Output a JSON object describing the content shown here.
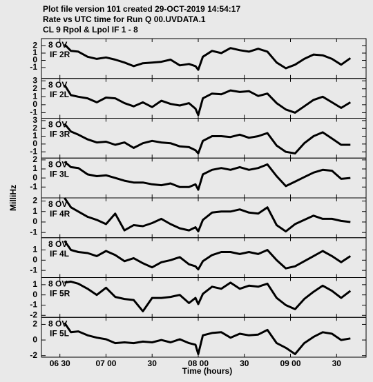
{
  "header": {
    "lines": [
      "Plot file version 101  created 29-OCT-2019 14:54:17",
      "Rate vs UTC time for Run Q 00.UVDATA.1",
      "CL 9  Rpol & Lpol  IF 1 - 8"
    ],
    "ylabel": "MilliHz",
    "xlabel": "Time (hours)"
  },
  "chart_data": [
    {
      "type": "line",
      "labels": [
        "8 OV",
        "IF 2R"
      ],
      "color": "#000000",
      "x": [
        6.55,
        6.62,
        6.7,
        6.8,
        6.9,
        7.0,
        7.1,
        7.2,
        7.3,
        7.4,
        7.5,
        7.6,
        7.7,
        7.8,
        7.9,
        7.97,
        8.0,
        8.05,
        8.15,
        8.25,
        8.35,
        8.45,
        8.55,
        8.65,
        8.75,
        8.85,
        8.95,
        9.05,
        9.15,
        9.25,
        9.35,
        9.45,
        9.55,
        9.65
      ],
      "values": [
        2.2,
        1.3,
        1.2,
        0.5,
        0.2,
        0.4,
        0.1,
        -0.3,
        -0.8,
        -0.4,
        -0.3,
        -0.2,
        0.1,
        -0.7,
        -0.5,
        -0.8,
        -1.3,
        0.5,
        1.3,
        1.0,
        1.7,
        1.4,
        1.2,
        1.6,
        1.2,
        -0.3,
        -1.1,
        -0.6,
        0.2,
        0.8,
        0.7,
        0.2,
        -0.6,
        0.3
      ],
      "xlim": [
        6.3,
        9.82
      ],
      "xticks": [
        {
          "value": 6.5,
          "label": "06 30"
        },
        {
          "value": 7.0,
          "label": "07 00"
        },
        {
          "value": 7.5,
          "label": "30"
        },
        {
          "value": 8.0,
          "label": "08 00"
        },
        {
          "value": 8.5,
          "label": "30"
        },
        {
          "value": 9.0,
          "label": "09 00"
        },
        {
          "value": 9.5,
          "label": "30"
        }
      ],
      "ylim": [
        -2.5,
        3.0
      ],
      "yticks": [
        -1,
        0,
        1,
        2
      ]
    },
    {
      "type": "line",
      "labels": [
        "8 OV",
        "IF 2L"
      ],
      "color": "#000000",
      "x": [
        6.55,
        6.62,
        6.7,
        6.8,
        6.9,
        7.0,
        7.1,
        7.2,
        7.3,
        7.4,
        7.5,
        7.6,
        7.7,
        7.8,
        7.9,
        7.97,
        8.0,
        8.05,
        8.15,
        8.25,
        8.35,
        8.45,
        8.55,
        8.65,
        8.75,
        8.85,
        8.95,
        9.05,
        9.15,
        9.25,
        9.35,
        9.45,
        9.55,
        9.65
      ],
      "values": [
        2.5,
        1.2,
        1.0,
        0.8,
        0.3,
        0.9,
        0.8,
        0.2,
        -0.2,
        0.3,
        -0.3,
        0.5,
        0.1,
        -0.1,
        0.2,
        -0.5,
        -1.3,
        0.8,
        1.4,
        1.3,
        1.8,
        1.6,
        1.7,
        1.1,
        1.4,
        0.2,
        -0.6,
        -1.0,
        -0.2,
        0.6,
        1.0,
        0.3,
        -0.4,
        0.3
      ],
      "xlim": [
        6.3,
        9.82
      ],
      "xticks": [
        {
          "value": 6.5,
          "label": "06 30"
        },
        {
          "value": 7.0,
          "label": "07 00"
        },
        {
          "value": 7.5,
          "label": "30"
        },
        {
          "value": 8.0,
          "label": "08 00"
        },
        {
          "value": 8.5,
          "label": "30"
        },
        {
          "value": 9.0,
          "label": "09 00"
        },
        {
          "value": 9.5,
          "label": "30"
        }
      ],
      "ylim": [
        -1.7,
        3.3
      ],
      "yticks": [
        -1,
        0,
        1,
        2,
        3
      ]
    },
    {
      "type": "line",
      "labels": [
        "8 OV",
        "IF 3R"
      ],
      "color": "#000000",
      "x": [
        6.55,
        6.62,
        6.7,
        6.8,
        6.9,
        7.0,
        7.1,
        7.2,
        7.3,
        7.4,
        7.5,
        7.6,
        7.7,
        7.8,
        7.9,
        7.97,
        8.0,
        8.05,
        8.15,
        8.25,
        8.35,
        8.45,
        8.55,
        8.65,
        8.75,
        8.85,
        8.95,
        9.05,
        9.15,
        9.25,
        9.35,
        9.45,
        9.55,
        9.65
      ],
      "values": [
        2.6,
        1.6,
        1.2,
        0.6,
        0.2,
        0.3,
        -0.1,
        0.2,
        -0.5,
        0.1,
        0.4,
        0.2,
        0.1,
        -0.3,
        -0.4,
        -0.8,
        -1.2,
        0.4,
        1.0,
        1.0,
        0.9,
        1.2,
        0.8,
        1.0,
        1.4,
        -0.2,
        -1.0,
        -1.2,
        0.1,
        1.0,
        1.5,
        0.7,
        -0.1,
        -0.1
      ],
      "xlim": [
        6.3,
        9.82
      ],
      "xticks": [
        {
          "value": 6.5,
          "label": "06 30"
        },
        {
          "value": 7.0,
          "label": "07 00"
        },
        {
          "value": 7.5,
          "label": "30"
        },
        {
          "value": 8.0,
          "label": "08 00"
        },
        {
          "value": 8.5,
          "label": "30"
        },
        {
          "value": 9.0,
          "label": "09 00"
        },
        {
          "value": 9.5,
          "label": "30"
        }
      ],
      "ylim": [
        -1.8,
        3.3
      ],
      "yticks": [
        -1,
        0,
        1,
        2,
        3
      ]
    },
    {
      "type": "line",
      "labels": [
        "8 OV",
        "IF 3L"
      ],
      "color": "#000000",
      "x": [
        6.55,
        6.62,
        6.7,
        6.8,
        6.9,
        7.0,
        7.1,
        7.2,
        7.3,
        7.4,
        7.5,
        7.6,
        7.7,
        7.8,
        7.9,
        7.97,
        8.0,
        8.05,
        8.15,
        8.25,
        8.35,
        8.45,
        8.55,
        8.65,
        8.75,
        8.85,
        8.95,
        9.05,
        9.15,
        9.25,
        9.35,
        9.45,
        9.55,
        9.65
      ],
      "values": [
        1.8,
        1.2,
        1.1,
        0.4,
        0.2,
        0.3,
        0.0,
        -0.3,
        -0.5,
        -0.5,
        -0.7,
        -0.8,
        -0.6,
        -1.0,
        -1.0,
        -0.7,
        -1.3,
        0.4,
        0.9,
        1.1,
        0.9,
        1.2,
        0.9,
        1.1,
        1.5,
        0.2,
        -0.9,
        -0.4,
        0.1,
        0.6,
        0.9,
        0.8,
        -0.1,
        0.0
      ],
      "xlim": [
        6.3,
        9.82
      ],
      "xticks": [
        {
          "value": 6.5,
          "label": "06 30"
        },
        {
          "value": 7.0,
          "label": "07 00"
        },
        {
          "value": 7.5,
          "label": "30"
        },
        {
          "value": 8.0,
          "label": "08 00"
        },
        {
          "value": 8.5,
          "label": "30"
        },
        {
          "value": 9.0,
          "label": "09 00"
        },
        {
          "value": 9.5,
          "label": "30"
        }
      ],
      "ylim": [
        -2.2,
        2.2
      ],
      "yticks": [
        -1,
        0,
        1,
        2
      ]
    },
    {
      "type": "line",
      "labels": [
        "8 OV",
        "IF 4R"
      ],
      "color": "#000000",
      "x": [
        6.55,
        6.62,
        6.7,
        6.8,
        6.9,
        7.0,
        7.1,
        7.2,
        7.3,
        7.4,
        7.5,
        7.6,
        7.7,
        7.8,
        7.9,
        7.97,
        8.0,
        8.05,
        8.15,
        8.25,
        8.35,
        8.45,
        8.55,
        8.65,
        8.75,
        8.85,
        8.95,
        9.05,
        9.15,
        9.25,
        9.35,
        9.45,
        9.55,
        9.65
      ],
      "values": [
        2.3,
        1.4,
        1.0,
        0.5,
        0.2,
        -0.2,
        0.8,
        -0.8,
        -0.3,
        -0.4,
        -0.1,
        0.3,
        -0.2,
        -0.6,
        -0.8,
        -0.5,
        -0.9,
        0.2,
        0.9,
        1.0,
        1.0,
        1.2,
        0.9,
        0.8,
        1.4,
        -0.3,
        -0.9,
        -0.2,
        0.2,
        0.6,
        0.3,
        0.3,
        0.1,
        0.0
      ],
      "xlim": [
        6.3,
        9.82
      ],
      "xticks": [
        {
          "value": 6.5,
          "label": "06 30"
        },
        {
          "value": 7.0,
          "label": "07 00"
        },
        {
          "value": 7.5,
          "label": "30"
        },
        {
          "value": 8.0,
          "label": "08 00"
        },
        {
          "value": 8.5,
          "label": "30"
        },
        {
          "value": 9.0,
          "label": "09 00"
        },
        {
          "value": 9.5,
          "label": "30"
        }
      ],
      "ylim": [
        -1.5,
        2.3
      ],
      "yticks": [
        -1,
        0,
        1,
        2
      ]
    },
    {
      "type": "line",
      "labels": [
        "8 OV",
        "IF 4L"
      ],
      "color": "#000000",
      "x": [
        6.55,
        6.62,
        6.7,
        6.8,
        6.9,
        7.0,
        7.1,
        7.2,
        7.3,
        7.4,
        7.5,
        7.6,
        7.7,
        7.8,
        7.9,
        7.97,
        8.0,
        8.05,
        8.15,
        8.25,
        8.35,
        8.45,
        8.55,
        8.65,
        8.75,
        8.85,
        8.95,
        9.05,
        9.15,
        9.25,
        9.35,
        9.45,
        9.55,
        9.65
      ],
      "values": [
        1.9,
        1.0,
        0.8,
        0.7,
        0.4,
        0.9,
        0.5,
        -0.1,
        0.2,
        -0.3,
        -0.7,
        -0.2,
        0.0,
        0.3,
        -0.4,
        -0.6,
        -0.9,
        -0.1,
        0.5,
        0.8,
        0.8,
        0.6,
        0.8,
        0.6,
        1.0,
        0.0,
        -0.8,
        -0.6,
        -0.1,
        0.4,
        0.9,
        0.4,
        -0.2,
        0.4
      ],
      "xlim": [
        6.3,
        9.82
      ],
      "xticks": [
        {
          "value": 6.5,
          "label": "06 30"
        },
        {
          "value": 7.0,
          "label": "07 00"
        },
        {
          "value": 7.5,
          "label": "30"
        },
        {
          "value": 8.0,
          "label": "08 00"
        },
        {
          "value": 8.5,
          "label": "30"
        },
        {
          "value": 9.0,
          "label": "09 00"
        },
        {
          "value": 9.5,
          "label": "30"
        }
      ],
      "ylim": [
        -1.7,
        2.2
      ],
      "yticks": [
        -1,
        0,
        1
      ]
    },
    {
      "type": "line",
      "labels": [
        "8 OV",
        "IF 5R"
      ],
      "color": "#000000",
      "x": [
        6.55,
        6.62,
        6.7,
        6.8,
        6.9,
        7.0,
        7.1,
        7.2,
        7.3,
        7.4,
        7.5,
        7.6,
        7.7,
        7.8,
        7.9,
        7.97,
        8.0,
        8.05,
        8.15,
        8.25,
        8.35,
        8.45,
        8.55,
        8.65,
        8.75,
        8.85,
        8.95,
        9.05,
        9.15,
        9.25,
        9.35,
        9.45,
        9.55,
        9.65
      ],
      "values": [
        1.2,
        1.3,
        1.1,
        0.6,
        0.0,
        0.7,
        -0.2,
        -0.4,
        -0.5,
        -1.6,
        -0.3,
        -0.3,
        -0.2,
        0.0,
        -0.8,
        -0.3,
        -0.9,
        0.1,
        0.8,
        0.6,
        1.2,
        0.6,
        0.9,
        0.8,
        1.1,
        -0.3,
        -1.0,
        -1.4,
        -0.4,
        0.3,
        0.9,
        0.4,
        -0.3,
        0.4
      ],
      "xlim": [
        6.3,
        9.82
      ],
      "xticks": [
        {
          "value": 6.5,
          "label": "06 30"
        },
        {
          "value": 7.0,
          "label": "07 00"
        },
        {
          "value": 7.5,
          "label": "30"
        },
        {
          "value": 8.0,
          "label": "08 00"
        },
        {
          "value": 8.5,
          "label": "30"
        },
        {
          "value": 9.0,
          "label": "09 00"
        },
        {
          "value": 9.5,
          "label": "30"
        }
      ],
      "ylim": [
        -2.2,
        1.7
      ],
      "yticks": [
        -2,
        -1,
        0,
        1
      ]
    },
    {
      "type": "line",
      "labels": [
        "8 OV",
        "IF 5L"
      ],
      "color": "#000000",
      "x": [
        6.55,
        6.62,
        6.7,
        6.8,
        6.9,
        7.0,
        7.1,
        7.2,
        7.3,
        7.4,
        7.5,
        7.6,
        7.7,
        7.8,
        7.9,
        7.97,
        8.0,
        8.05,
        8.15,
        8.25,
        8.35,
        8.45,
        8.55,
        8.65,
        8.75,
        8.85,
        8.95,
        9.05,
        9.15,
        9.25,
        9.35,
        9.45,
        9.55,
        9.65
      ],
      "values": [
        2.2,
        1.0,
        1.1,
        0.6,
        0.3,
        0.1,
        -0.4,
        -0.3,
        -0.4,
        -0.2,
        -0.3,
        0.0,
        -0.3,
        0.1,
        -0.4,
        -0.6,
        -1.8,
        0.6,
        0.9,
        1.0,
        0.3,
        0.8,
        0.6,
        0.7,
        1.3,
        -0.4,
        -1.0,
        -1.8,
        -0.4,
        0.4,
        1.0,
        0.8,
        0.0,
        0.2
      ],
      "xlim": [
        6.3,
        9.82
      ],
      "xticks": [
        {
          "value": 6.5,
          "label": "06 30"
        },
        {
          "value": 7.0,
          "label": "07 00"
        },
        {
          "value": 7.5,
          "label": "30"
        },
        {
          "value": 8.0,
          "label": "08 00"
        },
        {
          "value": 8.5,
          "label": "30"
        },
        {
          "value": 9.0,
          "label": "09 00"
        },
        {
          "value": 9.5,
          "label": "30"
        }
      ],
      "ylim": [
        -2.2,
        2.9
      ],
      "yticks": [
        -2,
        0,
        2
      ]
    }
  ]
}
